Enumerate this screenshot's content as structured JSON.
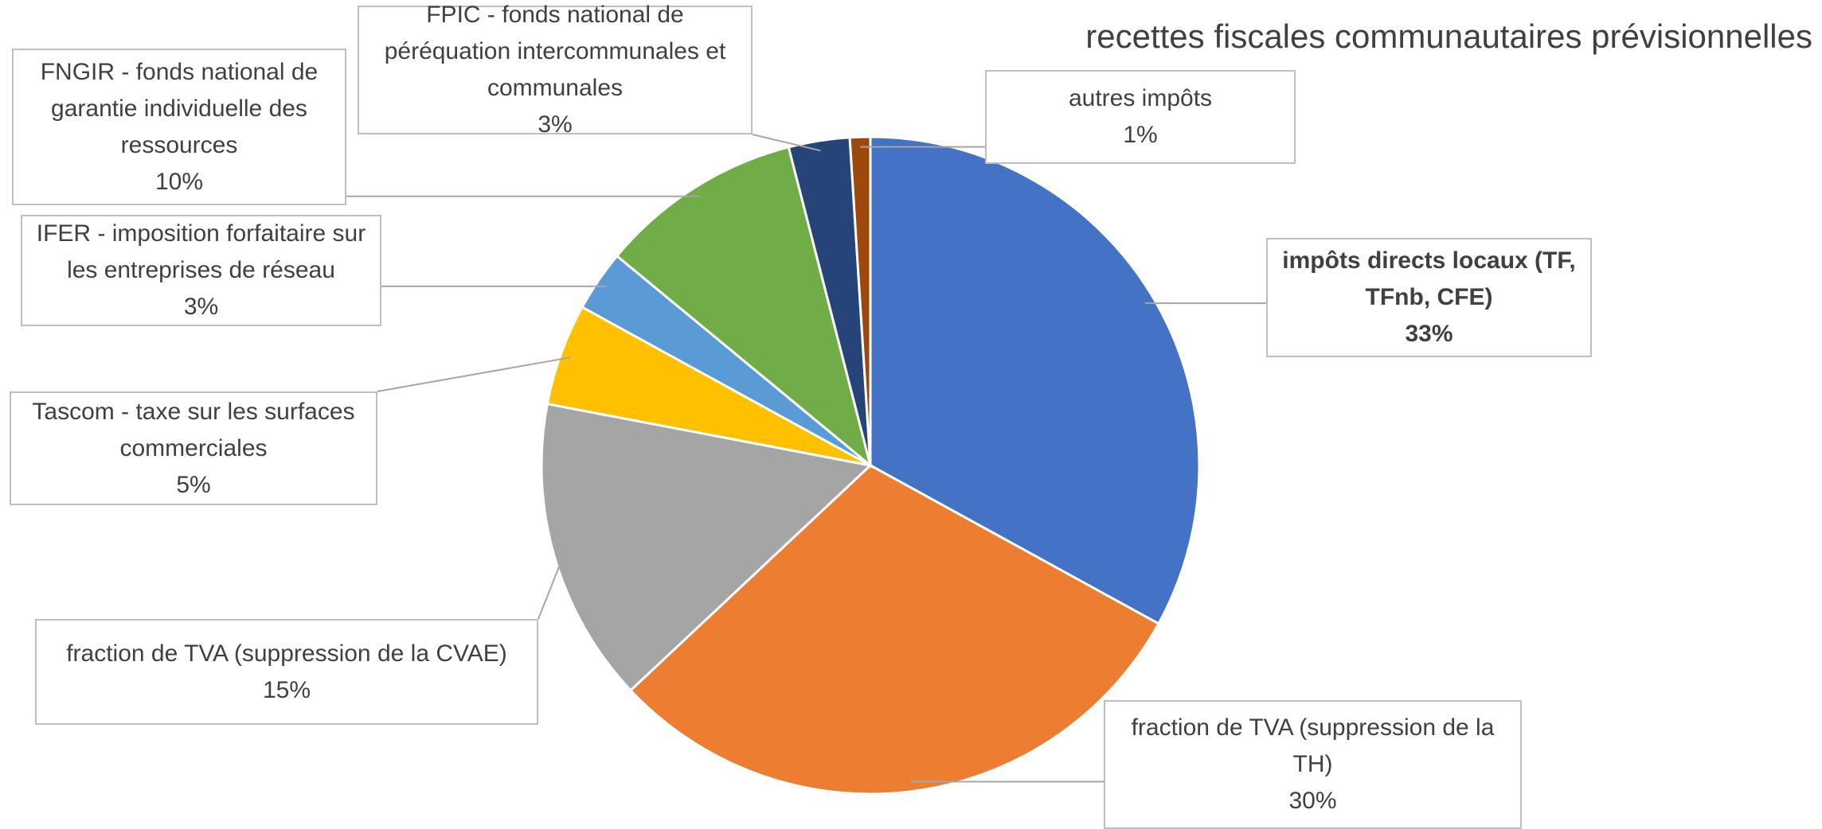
{
  "chart_data": {
    "type": "pie",
    "title": "recettes fiscales communautaires prévisionnelles",
    "categories": [
      "impôts directs locaux (TF, TFnb, CFE)",
      "fraction de TVA (suppression de la TH)",
      "fraction de TVA (suppression de la CVAE)",
      "Tascom - taxe sur les surfaces commerciales",
      "IFER - imposition forfaitaire sur les entreprises de réseau",
      "FNGIR - fonds national de garantie individuelle des ressources",
      "FPIC - fonds national de péréquation intercommunales et communales",
      "autres impôts"
    ],
    "values": [
      33,
      30,
      15,
      5,
      3,
      10,
      3,
      1
    ],
    "value_labels": [
      "33%",
      "30%",
      "15%",
      "5%",
      "3%",
      "10%",
      "3%",
      "1%"
    ],
    "colors": [
      "#4472c4",
      "#ed7d31",
      "#a5a5a5",
      "#ffc000",
      "#5b9bd5",
      "#70ad47",
      "#264478",
      "#9e480e"
    ]
  }
}
